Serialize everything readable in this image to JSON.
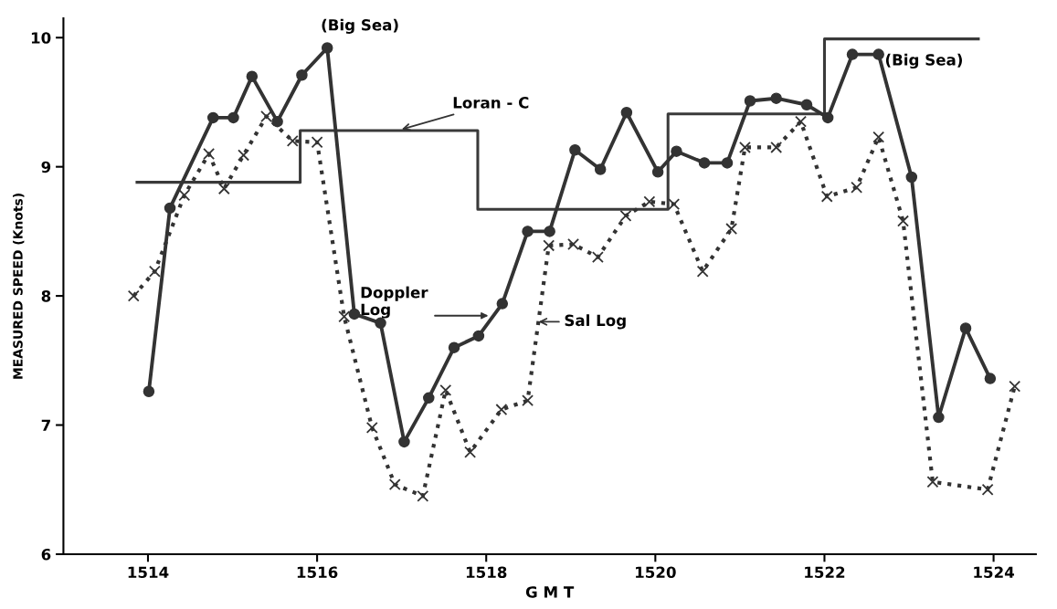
{
  "chart_data": {
    "type": "line",
    "xlabel": "G M T",
    "ylabel": "MEASURED SPEED (Knots)",
    "xlim": [
      1513,
      1524.5
    ],
    "ylim": [
      6,
      10.15
    ],
    "xticks": [
      1514,
      1516,
      1518,
      1520,
      1522,
      1524
    ],
    "yticks": [
      6,
      7,
      8,
      9,
      10
    ],
    "grid": false,
    "series": [
      {
        "type": "step",
        "color": "#3a3a3a",
        "x": [
          1513.87,
          1515.8,
          1517.9,
          1520.15,
          1522.0,
          1523.82
        ],
        "values": [
          8.88,
          9.28,
          8.67,
          9.41,
          9.99,
          9.99
        ],
        "marker": "none",
        "line_style": "solid"
      },
      {
        "color": "#333333",
        "marker": "circle",
        "line_style": "solid",
        "x": [
          1514.01,
          1514.26,
          1514.77,
          1515.01,
          1515.23,
          1515.53,
          1515.82,
          1516.12,
          1516.44,
          1516.75,
          1517.03,
          1517.32,
          1517.62,
          1517.91,
          1518.19,
          1518.49,
          1518.75,
          1519.05,
          1519.35,
          1519.66,
          1520.03,
          1520.25,
          1520.58,
          1520.85,
          1521.12,
          1521.43,
          1521.79,
          1522.04,
          1522.33,
          1522.64,
          1523.03,
          1523.35,
          1523.67,
          1523.96
        ],
        "values": [
          7.26,
          8.68,
          9.38,
          9.38,
          9.7,
          9.35,
          9.71,
          9.92,
          7.86,
          7.79,
          6.87,
          7.21,
          7.6,
          7.69,
          7.94,
          8.5,
          8.5,
          9.13,
          8.98,
          9.42,
          8.96,
          9.12,
          9.03,
          9.03,
          9.51,
          9.53,
          9.48,
          9.38,
          9.87,
          9.87,
          8.92,
          7.06,
          7.75,
          7.36
        ]
      },
      {
        "color": "#333333",
        "marker": "cross",
        "line_style": "dotted",
        "x": [
          1513.83,
          1514.08,
          1514.43,
          1514.72,
          1514.9,
          1515.13,
          1515.4,
          1515.71,
          1516.0,
          1516.32,
          1516.65,
          1516.92,
          1517.25,
          1517.52,
          1517.81,
          1518.18,
          1518.49,
          1518.74,
          1519.03,
          1519.32,
          1519.65,
          1519.93,
          1520.22,
          1520.56,
          1520.9,
          1521.06,
          1521.43,
          1521.72,
          1522.03,
          1522.38,
          1522.64,
          1522.93,
          1523.28,
          1523.93,
          1524.25
        ],
        "values": [
          8.0,
          8.19,
          8.78,
          9.1,
          8.83,
          9.09,
          9.39,
          9.2,
          9.19,
          7.84,
          6.98,
          6.54,
          6.45,
          7.27,
          6.79,
          7.12,
          7.19,
          8.39,
          8.4,
          8.3,
          8.62,
          8.73,
          8.71,
          8.19,
          8.52,
          9.15,
          9.15,
          9.35,
          8.77,
          8.84,
          9.23,
          8.58,
          6.56,
          6.5,
          7.3
        ]
      }
    ],
    "annotations": [
      "(Big Sea)",
      {
        "text": "Loran - C",
        "x": 1517.0,
        "y": 9.29
      },
      "Doppler\nLog",
      {
        "text": "Sal Log",
        "x": 1518.62,
        "y": 7.8
      },
      "(Big Sea)"
    ]
  }
}
